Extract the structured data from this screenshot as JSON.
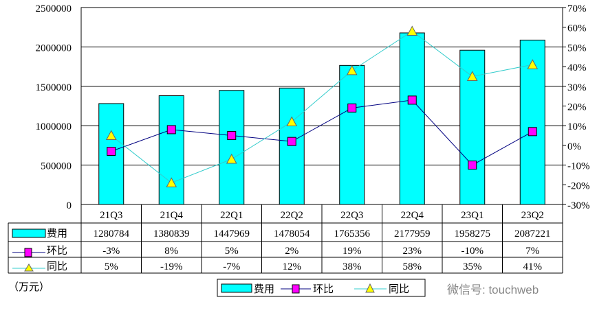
{
  "chart_data": {
    "type": "bar",
    "categories": [
      "21Q3",
      "21Q4",
      "22Q1",
      "22Q2",
      "22Q3",
      "22Q4",
      "23Q1",
      "23Q2"
    ],
    "series": [
      {
        "name": "费用",
        "type": "bar",
        "axis": "left",
        "values": [
          1280784,
          1380839,
          1447969,
          1478054,
          1765356,
          2177959,
          1958275,
          2087221
        ],
        "labels": [
          "1280784",
          "1380839",
          "1447969",
          "1478054",
          "1765356",
          "2177959",
          "1958275",
          "2087221"
        ],
        "color": "#00FFFF"
      },
      {
        "name": "环比",
        "type": "line",
        "axis": "right",
        "values": [
          -3,
          8,
          5,
          2,
          19,
          23,
          -10,
          7
        ],
        "labels": [
          "-3%",
          "8%",
          "5%",
          "2%",
          "19%",
          "23%",
          "-10%",
          "7%"
        ],
        "color": "#000080",
        "marker_color": "#FF00FF"
      },
      {
        "name": "同比",
        "type": "line",
        "axis": "right",
        "values": [
          5,
          -19,
          -7,
          12,
          38,
          58,
          35,
          41
        ],
        "labels": [
          "5%",
          "-19%",
          "-7%",
          "12%",
          "38%",
          "58%",
          "35%",
          "41%"
        ],
        "color": "#33CCCC",
        "marker_color": "#FFFF00"
      }
    ],
    "ylim": [
      0,
      2500000
    ],
    "yticks": [
      "0",
      "500000",
      "1000000",
      "1500000",
      "2000000",
      "2500000"
    ],
    "y2lim": [
      -30,
      70
    ],
    "y2ticks": [
      "-30%",
      "-20%",
      "-10%",
      "0%",
      "10%",
      "20%",
      "30%",
      "40%",
      "50%",
      "60%",
      "70%"
    ],
    "unit_label": "（万元）",
    "legend": [
      "费用",
      "环比",
      "同比"
    ],
    "legend_placement": "bottom",
    "grid": true
  },
  "watermark": "微信号: touchweb"
}
